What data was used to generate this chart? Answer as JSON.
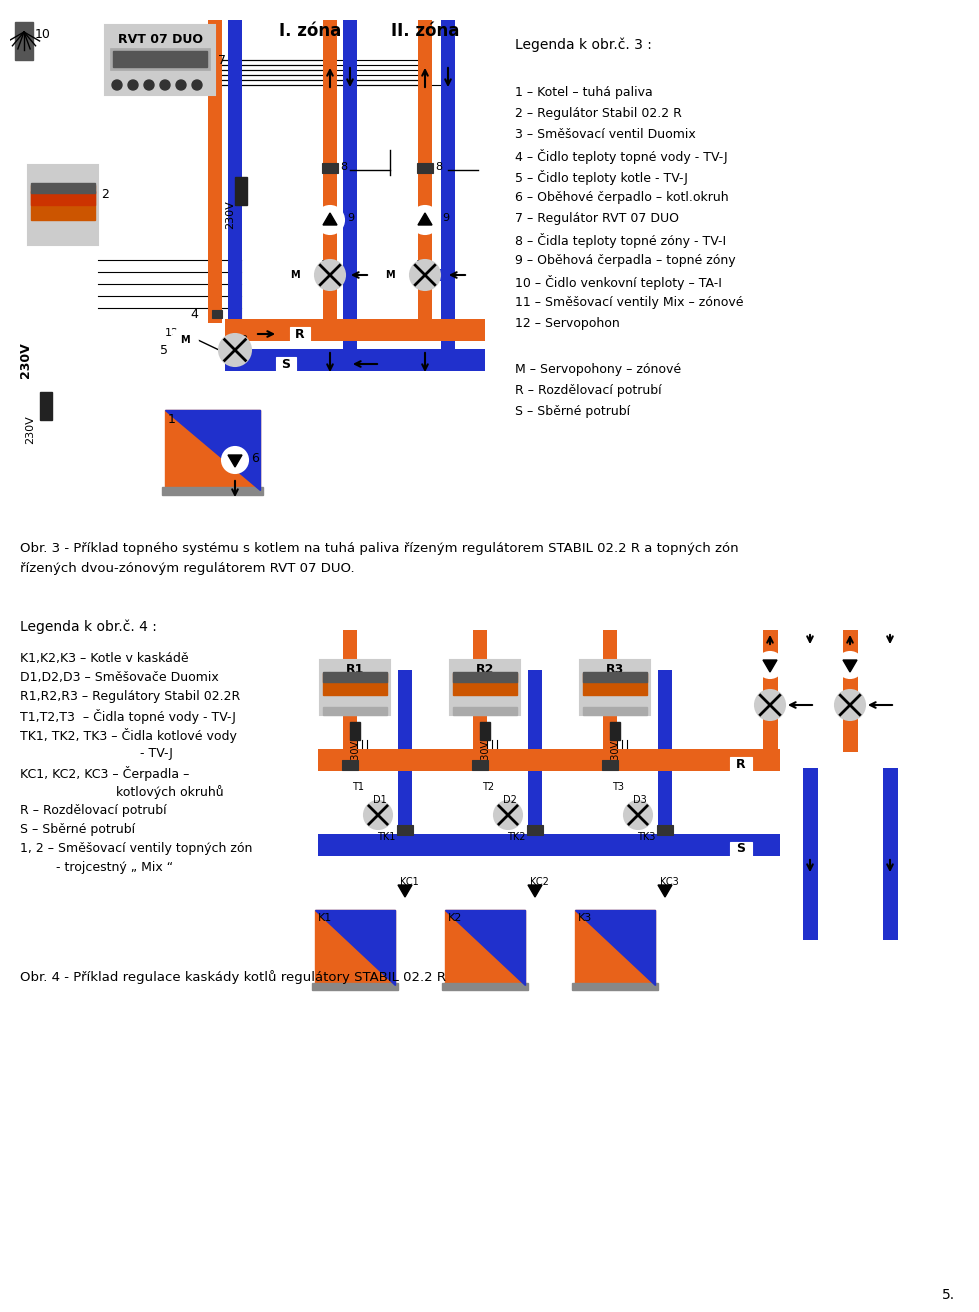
{
  "bg_color": "#ffffff",
  "fig_width": 9.6,
  "fig_height": 12.86,
  "orange": "#E8621A",
  "blue": "#2030CC",
  "black": "#000000",
  "gray": "#888888",
  "lgray": "#CCCCCC",
  "legend3_title": "Legenda k obr.č. 3 :",
  "legend3_items": [
    "1 – Kotel – tuhá paliva",
    "2 – Regulátor Stabil 02.2 R",
    "3 – Směšovací ventil Duomix",
    "4 – Čidlo teploty topné vody - TV-J",
    "5 – Čidlo teploty kotle - TV-J",
    "6 – Oběhové čerpadlo – kotl.okruh",
    "7 – Regulátor RVT 07 DUO",
    "8 – Čidla teploty topné zóny - TV-I",
    "9 – Oběhová čerpadla – topné zóny",
    "10 – Čidlo venkovní teploty – TA-I",
    "11 – Směšovací ventily Mix – zónové",
    "12 – Servopohon"
  ],
  "legend3_bottom": [
    "M – Servopohony – zónové",
    "R – Rozdělovací potrubí",
    "S – Sběrné potrubí"
  ],
  "caption3": "Obr. 3 - Příklad topného systému s kotlem na tuhá paliva řízeným regulátorem STABIL 02.2 R a topných zón",
  "caption3b": "řízených dvou-zónovým regulátorem RVT 07 DUO.",
  "legend4_title": "Legenda k obr.č. 4 :",
  "legend4_items": [
    "K1,K2,K3 – Kotle v kaskádě",
    "D1,D2,D3 – Směšovače Duomix",
    "R1,R2,R3 – Regulátory Stabil 02.2R",
    "T1,T2,T3  – Čidla topné vody - TV-J",
    "TK1, TK2, TK3 – Čidla kotlové vody",
    "                              - TV-J",
    "KC1, KC2, KC3 – Čerpadla –",
    "                        kotlových okruhů",
    "R – Rozdělovací potrubí",
    "S – Sběrné potrubí",
    "1, 2 – Směšovací ventily topných zón",
    "         - trojcestný „ Mix “"
  ],
  "caption4": "Obr. 4 - Příklad regulace kaskády kotlů regulátory STABIL 02.2 R",
  "page_num": "5."
}
